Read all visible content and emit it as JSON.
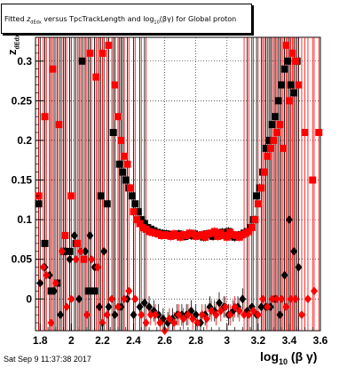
{
  "title": {
    "prefix": "Fitted ",
    "z_sub": "dEdx",
    "middle": " versus TpcTrackLength and log",
    "log_sub": "10",
    "suffix": "(βγ) for Global proton"
  },
  "footer": "Sat Sep  9 11:37:38 2017",
  "colors": {
    "red": "#ff0000",
    "black": "#000000",
    "grid": "#000000"
  },
  "chart_data": {
    "type": "scatter",
    "title": "Fitted z_dEdx versus TpcTrackLength and log10(βγ) for Global proton",
    "xlabel": "log10(βγ)",
    "ylabel": "zdEdx",
    "xlim": [
      1.77,
      3.6
    ],
    "ylim": [
      -0.04,
      0.33
    ],
    "x_ticks": [
      1.8,
      2.0,
      2.2,
      2.4,
      2.6,
      2.8,
      3.0,
      3.2,
      3.4,
      3.6
    ],
    "x_tick_labels": [
      "1.8",
      "2",
      "2.2",
      "2.4",
      "2.6",
      "2.8",
      "3",
      "3.2",
      "3.4",
      "3.6"
    ],
    "y_ticks": [
      0,
      0.05,
      0.1,
      0.15,
      0.2,
      0.25,
      0.3
    ],
    "y_tick_labels": [
      "0",
      "0.05",
      "0.1",
      "0.15",
      "0.2",
      "0.25",
      "0.3"
    ],
    "grid": true,
    "series": [
      {
        "marker": "square",
        "color": "black",
        "x": [
          1.79,
          1.83,
          1.87,
          1.91,
          1.95,
          1.99,
          2.03,
          2.07,
          2.11,
          2.15,
          2.19,
          2.23,
          2.27,
          2.31,
          2.33,
          2.35,
          2.37,
          2.39,
          2.41,
          2.43,
          2.45,
          2.47,
          2.49,
          2.51,
          2.53,
          2.55,
          2.57,
          2.59,
          2.61,
          2.63,
          2.65,
          2.67,
          2.69,
          2.71,
          2.73,
          2.75,
          2.77,
          2.79,
          2.81,
          2.83,
          2.85,
          2.87,
          2.89,
          2.91,
          2.93,
          2.95,
          2.97,
          2.99,
          3.01,
          3.03,
          3.05,
          3.07,
          3.09,
          3.11,
          3.13,
          3.15,
          3.17,
          3.19,
          3.21,
          3.23,
          3.25,
          3.27,
          3.29,
          3.31,
          3.33,
          3.35,
          3.37,
          3.39,
          3.41,
          3.43,
          3.45
        ],
        "y": [
          0.12,
          0.07,
          0.01,
          0.02,
          0.06,
          0.06,
          0.07,
          0.3,
          0.01,
          0.01,
          0.13,
          0.12,
          0.21,
          0.17,
          0.16,
          0.15,
          0.14,
          0.13,
          0.12,
          0.11,
          0.1,
          0.095,
          0.09,
          0.088,
          0.086,
          0.084,
          0.083,
          0.082,
          0.082,
          0.081,
          0.08,
          0.081,
          0.082,
          0.08,
          0.079,
          0.081,
          0.08,
          0.082,
          0.08,
          0.08,
          0.078,
          0.082,
          0.081,
          0.079,
          0.083,
          0.08,
          0.084,
          0.082,
          0.085,
          0.08,
          0.078,
          0.08,
          0.081,
          0.083,
          0.085,
          0.09,
          0.1,
          0.13,
          0.14,
          0.16,
          0.19,
          0.2,
          0.22,
          0.23,
          0.25,
          0.27,
          0.29,
          0.3,
          0.27,
          0.26,
          0.3
        ]
      },
      {
        "marker": "square",
        "color": "red",
        "x": [
          1.79,
          1.83,
          1.88,
          1.92,
          1.96,
          2.0,
          2.04,
          2.08,
          2.12,
          2.16,
          2.2,
          2.24,
          2.28,
          2.3,
          2.32,
          2.34,
          2.36,
          2.38,
          2.4,
          2.42,
          2.44,
          2.46,
          2.48,
          2.5,
          2.52,
          2.54,
          2.56,
          2.58,
          2.6,
          2.62,
          2.64,
          2.66,
          2.68,
          2.7,
          2.72,
          2.74,
          2.76,
          2.78,
          2.8,
          2.82,
          2.84,
          2.86,
          2.88,
          2.9,
          2.92,
          2.94,
          2.96,
          2.98,
          3.0,
          3.02,
          3.04,
          3.06,
          3.08,
          3.1,
          3.12,
          3.14,
          3.16,
          3.18,
          3.2,
          3.22,
          3.24,
          3.26,
          3.28,
          3.3,
          3.32,
          3.34,
          3.36,
          3.38,
          3.4,
          3.42,
          3.44,
          3.46,
          3.5,
          3.55,
          3.59
        ],
        "y": [
          0.13,
          0.23,
          0.29,
          0.22,
          0.08,
          0.13,
          0.07,
          0.05,
          0.31,
          0.28,
          0.31,
          0.32,
          0.27,
          0.23,
          0.2,
          0.18,
          0.17,
          0.14,
          0.11,
          0.1,
          0.095,
          0.09,
          0.088,
          0.085,
          0.084,
          0.083,
          0.082,
          0.08,
          0.081,
          0.08,
          0.079,
          0.082,
          0.08,
          0.078,
          0.081,
          0.08,
          0.083,
          0.082,
          0.079,
          0.08,
          0.081,
          0.078,
          0.082,
          0.083,
          0.085,
          0.079,
          0.083,
          0.08,
          0.078,
          0.084,
          0.081,
          0.08,
          0.078,
          0.081,
          0.083,
          0.085,
          0.09,
          0.1,
          0.12,
          0.14,
          0.16,
          0.18,
          0.19,
          0.2,
          0.21,
          0.22,
          0.19,
          0.32,
          0.25,
          0.31,
          0.3,
          0.27,
          0.21,
          0.15,
          0.21
        ]
      },
      {
        "marker": "diamond",
        "color": "black",
        "x": [
          1.8,
          1.83,
          1.86,
          1.89,
          1.93,
          1.96,
          1.99,
          2.02,
          2.05,
          2.09,
          2.12,
          2.15,
          2.18,
          2.21,
          2.24,
          2.28,
          2.32,
          2.36,
          2.4,
          2.44,
          2.47,
          2.5,
          2.53,
          2.56,
          2.59,
          2.62,
          2.65,
          2.68,
          2.71,
          2.74,
          2.77,
          2.8,
          2.83,
          2.86,
          2.89,
          2.92,
          2.95,
          2.98,
          3.01,
          3.04,
          3.07,
          3.1,
          3.13,
          3.16,
          3.19,
          3.22,
          3.25,
          3.28,
          3.31,
          3.34,
          3.37,
          3.4,
          3.43,
          3.46
        ],
        "y": [
          0.02,
          0.04,
          0.03,
          0.01,
          -0.02,
          0.06,
          0.05,
          0.08,
          0.0,
          0.06,
          0.08,
          0.04,
          -0.01,
          0.06,
          -0.01,
          -0.02,
          -0.01,
          0.0,
          -0.02,
          -0.01,
          -0.005,
          -0.01,
          -0.015,
          -0.02,
          -0.025,
          -0.03,
          -0.025,
          -0.02,
          -0.02,
          -0.02,
          -0.015,
          -0.02,
          -0.03,
          -0.02,
          -0.01,
          -0.015,
          -0.005,
          -0.01,
          -0.02,
          -0.015,
          -0.01,
          0.0,
          -0.015,
          -0.01,
          -0.02,
          -0.01,
          -0.01,
          -0.01,
          0.0,
          -0.02,
          0.03,
          0.1,
          0.06,
          0.04
        ]
      },
      {
        "marker": "diamond",
        "color": "red",
        "x": [
          1.82,
          1.84,
          1.87,
          1.9,
          1.94,
          1.97,
          2.0,
          2.03,
          2.06,
          2.1,
          2.13,
          2.17,
          2.2,
          2.23,
          2.26,
          2.3,
          2.34,
          2.37,
          2.41,
          2.45,
          2.48,
          2.51,
          2.54,
          2.57,
          2.6,
          2.63,
          2.66,
          2.69,
          2.72,
          2.75,
          2.78,
          2.81,
          2.84,
          2.87,
          2.9,
          2.93,
          2.96,
          2.99,
          3.02,
          3.05,
          3.08,
          3.11,
          3.14,
          3.17,
          3.2,
          3.23,
          3.26,
          3.29,
          3.32,
          3.35,
          3.38,
          3.41,
          3.44,
          3.48,
          3.52,
          3.56
        ],
        "y": [
          0.04,
          0.03,
          -0.03,
          0.02,
          0.06,
          -0.01,
          0.0,
          0.05,
          0.06,
          -0.02,
          0.05,
          0.04,
          -0.03,
          -0.02,
          0.0,
          -0.01,
          0.0,
          0.01,
          0.0,
          -0.02,
          -0.03,
          -0.02,
          -0.02,
          -0.03,
          -0.04,
          -0.025,
          -0.03,
          -0.02,
          -0.025,
          -0.02,
          -0.025,
          -0.03,
          -0.02,
          -0.025,
          -0.015,
          -0.02,
          -0.015,
          -0.01,
          -0.02,
          -0.01,
          -0.015,
          -0.02,
          -0.02,
          -0.015,
          -0.02,
          0.0,
          -0.01,
          0.0,
          0.0,
          0.0,
          -0.01,
          0.0,
          0.0,
          -0.02,
          0.0,
          0.01
        ]
      }
    ]
  }
}
